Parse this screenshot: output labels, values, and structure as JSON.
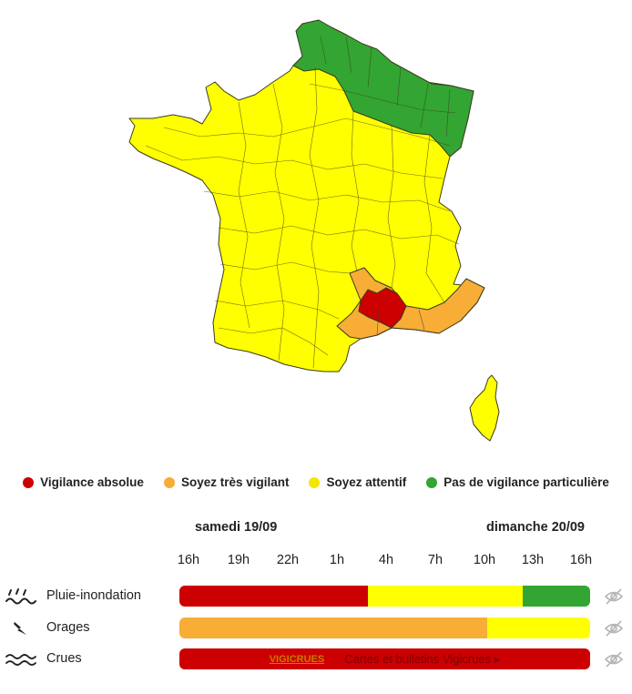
{
  "colors": {
    "red": "#cc0000",
    "orange": "#f7ad36",
    "yellow": "#ffff00",
    "green": "#33a532",
    "border": "#3b3b1f"
  },
  "legend": [
    {
      "label": "Vigilance absolue",
      "color": "#cc0000"
    },
    {
      "label": "Soyez très vigilant",
      "color": "#f7ad36"
    },
    {
      "label": "Soyez attentif",
      "color": "#f5e600"
    },
    {
      "label": "Pas de vigilance particulière",
      "color": "#33a532"
    }
  ],
  "timeline": {
    "day1": "samedi 19/09",
    "day2": "dimanche 20/09",
    "hours": [
      "16h",
      "19h",
      "22h",
      "1h",
      "4h",
      "7h",
      "10h",
      "13h",
      "16h"
    ]
  },
  "rows": [
    {
      "label": "Pluie-inondation",
      "icon": "rain-flood-icon",
      "segments": [
        {
          "color": "red",
          "fraction": 0.46
        },
        {
          "color": "yellow",
          "fraction": 0.375
        },
        {
          "color": "green",
          "fraction": 0.165
        }
      ]
    },
    {
      "label": "Orages",
      "icon": "lightning-icon",
      "segments": [
        {
          "color": "orange",
          "fraction": 0.75
        },
        {
          "color": "yellow",
          "fraction": 0.25
        }
      ]
    },
    {
      "label": "Crues",
      "icon": "waves-icon",
      "segments": [
        {
          "color": "red",
          "fraction": 1.0
        }
      ],
      "logo_text": "VIGICRUES",
      "link_text": "Cartes et bulletins Vigicrues ▸"
    }
  ]
}
